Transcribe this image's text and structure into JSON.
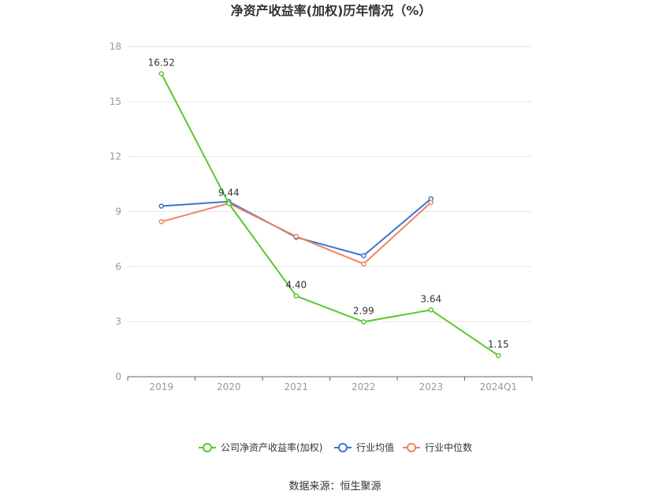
{
  "chart_data": {
    "type": "line",
    "title": "净资产收益率(加权)历年情况（%）",
    "categories": [
      "2019",
      "2020",
      "2021",
      "2022",
      "2023",
      "2024Q1"
    ],
    "ylim": [
      0,
      18
    ],
    "yticks": [
      0,
      3,
      6,
      9,
      12,
      15,
      18
    ],
    "grid": true,
    "legend_position": "bottom",
    "series": [
      {
        "name": "公司净资产收益率(加权)",
        "color": "#5ac82c",
        "values": [
          16.52,
          9.44,
          4.4,
          2.99,
          3.64,
          1.15
        ],
        "labels": [
          "16.52",
          "9.44",
          "4.40",
          "2.99",
          "3.64",
          "1.15"
        ]
      },
      {
        "name": "行业均值",
        "color": "#3b74d6",
        "values": [
          9.3,
          9.55,
          7.6,
          6.6,
          9.7,
          null
        ]
      },
      {
        "name": "行业中位数",
        "color": "#f0825f",
        "values": [
          8.45,
          9.45,
          7.65,
          6.15,
          9.5,
          null
        ]
      }
    ],
    "source": "数据来源：恒生聚源"
  }
}
